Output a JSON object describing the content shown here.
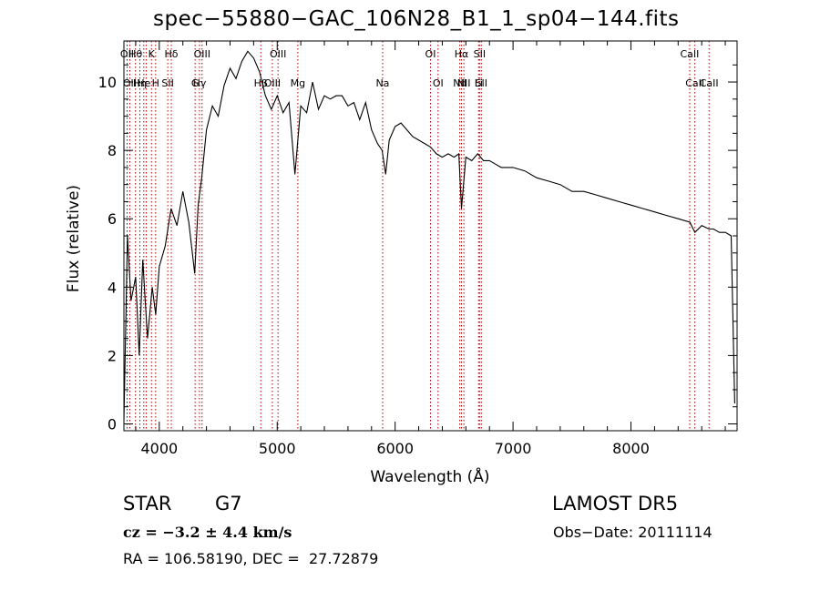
{
  "chart_data": {
    "type": "line",
    "title": "spec−55880−GAC_106N28_B1_1_sp04−144.fits",
    "xlabel": "Wavelength (Å)",
    "ylabel": "Flux (relative)",
    "xlim": [
      3700,
      8900
    ],
    "ylim": [
      -0.2,
      11.2
    ],
    "xticks": [
      4000,
      5000,
      6000,
      7000,
      8000
    ],
    "yticks": [
      0,
      2,
      4,
      6,
      8,
      10
    ],
    "line_color": "#000000",
    "marker_line_color": "#b00000",
    "series": [
      {
        "x": [
          3700,
          3730,
          3760,
          3800,
          3830,
          3860,
          3900,
          3940,
          3970,
          4000,
          4050,
          4100,
          4150,
          4200,
          4250,
          4300,
          4330,
          4360,
          4400,
          4450,
          4500,
          4550,
          4600,
          4650,
          4700,
          4750,
          4800,
          4850,
          4900,
          4950,
          5000,
          5050,
          5100,
          5150,
          5200,
          5250,
          5300,
          5350,
          5400,
          5450,
          5500,
          5550,
          5600,
          5650,
          5700,
          5750,
          5800,
          5850,
          5890,
          5920,
          5950,
          6000,
          6050,
          6100,
          6150,
          6200,
          6250,
          6300,
          6350,
          6400,
          6450,
          6500,
          6540,
          6563,
          6600,
          6650,
          6700,
          6750,
          6800,
          6850,
          6900,
          6950,
          7000,
          7100,
          7200,
          7300,
          7400,
          7500,
          7600,
          7700,
          7800,
          7900,
          8000,
          8100,
          8200,
          8300,
          8400,
          8500,
          8542,
          8600,
          8662,
          8700,
          8750,
          8800,
          8850,
          8880
        ],
        "y": [
          0.1,
          5.5,
          3.6,
          4.3,
          2.0,
          4.8,
          2.5,
          4.0,
          3.2,
          4.6,
          5.2,
          6.3,
          5.8,
          6.8,
          5.9,
          4.4,
          6.4,
          7.2,
          8.6,
          9.3,
          9.0,
          9.9,
          10.4,
          10.1,
          10.6,
          10.9,
          10.7,
          10.3,
          9.6,
          9.2,
          9.6,
          9.1,
          9.4,
          7.3,
          9.3,
          9.1,
          10.0,
          9.2,
          9.6,
          9.5,
          9.6,
          9.6,
          9.3,
          9.4,
          8.9,
          9.4,
          8.6,
          8.2,
          8.0,
          7.3,
          8.3,
          8.7,
          8.8,
          8.6,
          8.4,
          8.3,
          8.2,
          8.1,
          7.9,
          7.8,
          7.9,
          7.8,
          7.9,
          6.3,
          7.8,
          7.7,
          7.9,
          7.7,
          7.7,
          7.6,
          7.5,
          7.5,
          7.5,
          7.4,
          7.2,
          7.1,
          7.0,
          6.8,
          6.8,
          6.7,
          6.6,
          6.5,
          6.4,
          6.3,
          6.2,
          6.1,
          6.0,
          5.9,
          5.6,
          5.8,
          5.7,
          5.7,
          5.6,
          5.6,
          5.5,
          0.6
        ]
      }
    ],
    "lines": [
      {
        "x": 3727,
        "top": "OII",
        "bottom": ""
      },
      {
        "x": 3750,
        "top": "",
        "bottom": "OII"
      },
      {
        "x": 3798,
        "top": "Hθ",
        "bottom": ""
      },
      {
        "x": 3835,
        "top": "",
        "bottom": "Hη"
      },
      {
        "x": 3869,
        "top": "",
        "bottom": "He"
      },
      {
        "x": 3890,
        "top": "",
        "bottom": ""
      },
      {
        "x": 3934,
        "top": "K",
        "bottom": ""
      },
      {
        "x": 3969,
        "top": "",
        "bottom": "H"
      },
      {
        "x": 4072,
        "top": "",
        "bottom": "SII"
      },
      {
        "x": 4102,
        "top": "Hδ",
        "bottom": ""
      },
      {
        "x": 4304,
        "top": "",
        "bottom": "G"
      },
      {
        "x": 4341,
        "top": "",
        "bottom": "Hγ"
      },
      {
        "x": 4363,
        "top": "OIII",
        "bottom": ""
      },
      {
        "x": 4861,
        "top": "",
        "bottom": "Hβ"
      },
      {
        "x": 4959,
        "top": "",
        "bottom": "OIII"
      },
      {
        "x": 5007,
        "top": "OIII",
        "bottom": ""
      },
      {
        "x": 5175,
        "top": "",
        "bottom": "Mg"
      },
      {
        "x": 5894,
        "top": "",
        "bottom": "Na"
      },
      {
        "x": 6300,
        "top": "OI",
        "bottom": ""
      },
      {
        "x": 6364,
        "top": "",
        "bottom": "OI"
      },
      {
        "x": 6548,
        "top": "",
        "bottom": "NII"
      },
      {
        "x": 6563,
        "top": "Hα",
        "bottom": ""
      },
      {
        "x": 6583,
        "top": "",
        "bottom": "NII"
      },
      {
        "x": 6708,
        "top": "",
        "bottom": "Li"
      },
      {
        "x": 6716,
        "top": "SII",
        "bottom": ""
      },
      {
        "x": 6731,
        "top": "",
        "bottom": "SII"
      },
      {
        "x": 8498,
        "top": "CaII",
        "bottom": ""
      },
      {
        "x": 8542,
        "top": "",
        "bottom": "CaII"
      },
      {
        "x": 8662,
        "top": "",
        "bottom": "CaII"
      }
    ],
    "annotations": {
      "object": "STAR",
      "subclass": "G7",
      "survey": "LAMOST DR5",
      "redshift": "cz = −3.2 ± 4.4 km/s",
      "obsdate": "Obs−Date: 20111114",
      "coords": "RA = 106.58190, DEC =  27.72879"
    }
  }
}
